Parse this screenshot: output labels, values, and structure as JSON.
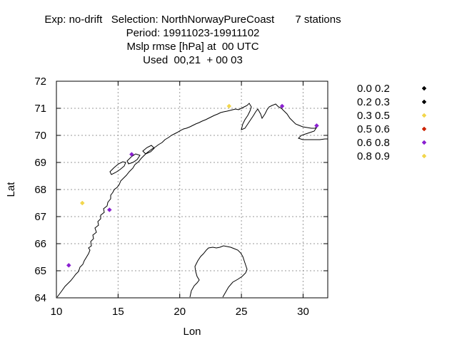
{
  "header": {
    "line1": "Exp: no-drift   Selection: NorthNorwayPureCoast       7 stations",
    "line2": "Period: 19911023-19911102",
    "line3": "Mslp rmse [hPa] at  00 UTC",
    "line4": "Used  00,21  + 00 03"
  },
  "chart_data": {
    "type": "scatter",
    "xlabel": "Lon",
    "ylabel": "Lat",
    "xlim": [
      10,
      32
    ],
    "ylim": [
      64,
      72
    ],
    "xticks": [
      "10",
      "15",
      "20",
      "25",
      "30"
    ],
    "yticks": [
      "64",
      "65",
      "66",
      "67",
      "68",
      "69",
      "70",
      "71",
      "72"
    ],
    "grid": true,
    "legend": {
      "placement": "right",
      "entries": [
        {
          "label": "0.0 0.2",
          "color": "#000000"
        },
        {
          "label": "0.2 0.3",
          "color": "#000000"
        },
        {
          "label": "0.3 0.5",
          "color": "#f2d64b"
        },
        {
          "label": "0.5 0.6",
          "color": "#cc2200"
        },
        {
          "label": "0.6 0.8",
          "color": "#8a1fd1"
        },
        {
          "label": "0.8 0.9",
          "color": "#f2d64b"
        }
      ]
    },
    "points": [
      {
        "lon": 11.0,
        "lat": 65.2,
        "class": 4
      },
      {
        "lon": 12.1,
        "lat": 67.5,
        "class": 5
      },
      {
        "lon": 14.3,
        "lat": 67.25,
        "class": 4
      },
      {
        "lon": 16.1,
        "lat": 69.3,
        "class": 4
      },
      {
        "lon": 24.0,
        "lat": 71.08,
        "class": 5
      },
      {
        "lon": 28.3,
        "lat": 71.08,
        "class": 4
      },
      {
        "lon": 31.1,
        "lat": 70.36,
        "class": 4
      }
    ]
  }
}
